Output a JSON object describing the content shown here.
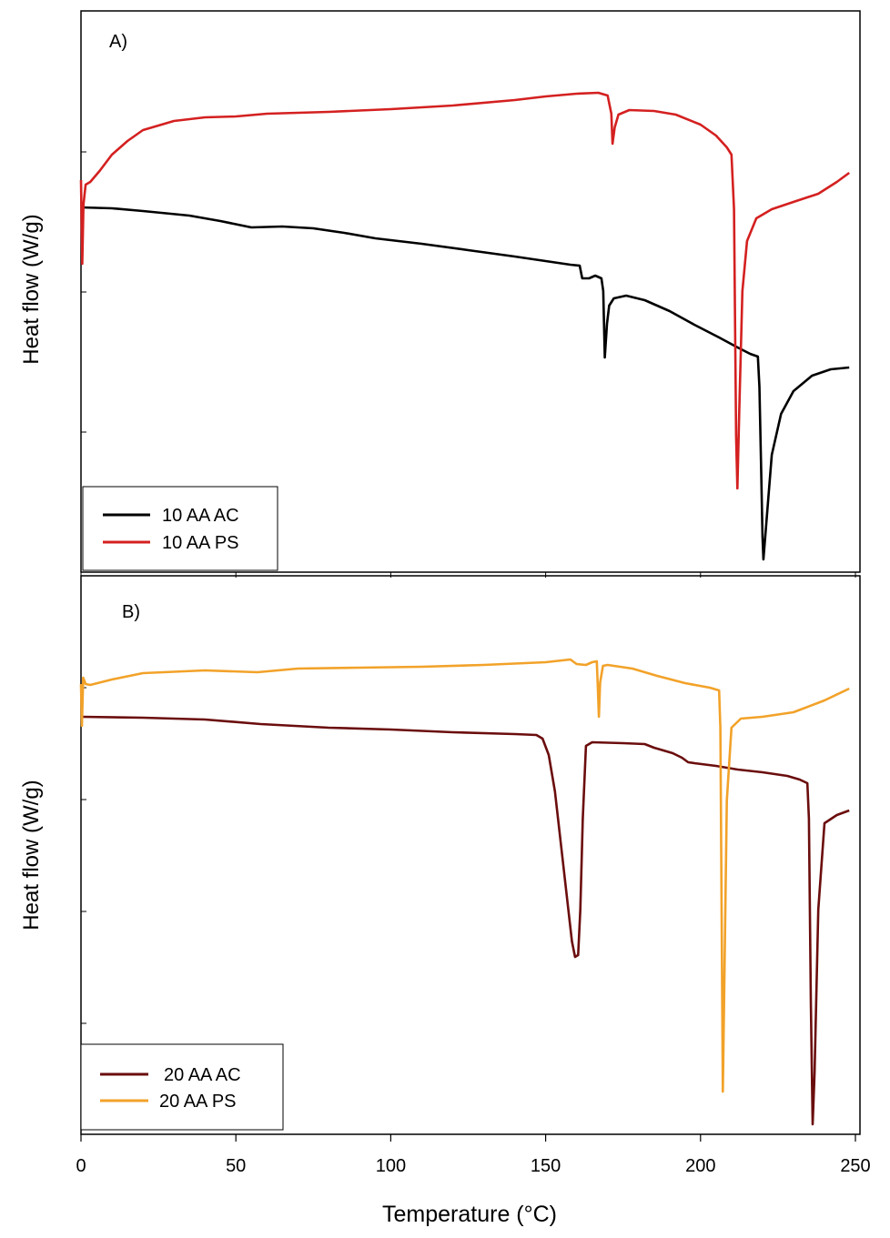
{
  "chart_data": [
    {
      "panel": "A)",
      "type": "line",
      "ylabel": "Heat flow (W/g)",
      "xlim": [
        0,
        250
      ],
      "legend": "bottom-left",
      "series": [
        {
          "name": "10 AA AC",
          "color": "#000000",
          "points": [
            [
              0,
              228
            ],
            [
              10,
              229
            ],
            [
              20,
              232
            ],
            [
              35,
              237
            ],
            [
              45,
              243
            ],
            [
              55,
              250
            ],
            [
              65,
              249
            ],
            [
              75,
              251
            ],
            [
              85,
              256
            ],
            [
              95,
              262
            ],
            [
              110,
              268
            ],
            [
              125,
              275
            ],
            [
              140,
              282
            ],
            [
              150,
              287
            ],
            [
              158,
              291
            ],
            [
              161,
              292
            ],
            [
              161.8,
              306
            ],
            [
              164,
              306
            ],
            [
              166,
              303
            ],
            [
              168,
              306
            ],
            [
              168.6,
              320
            ],
            [
              169.1,
              393
            ],
            [
              169.8,
              356
            ],
            [
              170.5,
              336
            ],
            [
              172,
              328
            ],
            [
              176,
              325
            ],
            [
              182,
              330
            ],
            [
              190,
              342
            ],
            [
              198,
              357
            ],
            [
              206,
              371
            ],
            [
              212,
              382
            ],
            [
              216,
              389
            ],
            [
              218.5,
              392
            ],
            [
              219,
              425
            ],
            [
              219.6,
              520
            ],
            [
              220,
              590
            ],
            [
              220.3,
              615
            ],
            [
              221,
              585
            ],
            [
              223,
              500
            ],
            [
              226,
              455
            ],
            [
              230,
              430
            ],
            [
              236,
              413
            ],
            [
              242,
              406
            ],
            [
              248,
              404
            ]
          ]
        },
        {
          "name": "10 AA PS",
          "color": "#d42020",
          "points": [
            [
              0,
              198
            ],
            [
              0.4,
              290
            ],
            [
              0.8,
              225
            ],
            [
              1.5,
              203
            ],
            [
              3,
              200
            ],
            [
              6,
              188
            ],
            [
              10,
              170
            ],
            [
              15,
              155
            ],
            [
              20,
              143
            ],
            [
              30,
              133
            ],
            [
              40,
              129
            ],
            [
              50,
              128
            ],
            [
              60,
              125
            ],
            [
              80,
              123
            ],
            [
              100,
              120
            ],
            [
              120,
              116
            ],
            [
              140,
              110
            ],
            [
              150,
              106
            ],
            [
              160,
              103
            ],
            [
              167,
              102
            ],
            [
              170,
              105
            ],
            [
              171.2,
              125
            ],
            [
              171.6,
              158
            ],
            [
              172.3,
              140
            ],
            [
              173.5,
              126
            ],
            [
              177,
              121
            ],
            [
              185,
              122
            ],
            [
              192,
              126
            ],
            [
              200,
              137
            ],
            [
              205,
              149
            ],
            [
              208.5,
              162
            ],
            [
              210,
              170
            ],
            [
              210.8,
              230
            ],
            [
              211.5,
              480
            ],
            [
              211.9,
              537
            ],
            [
              212.5,
              450
            ],
            [
              213.5,
              320
            ],
            [
              215,
              265
            ],
            [
              218,
              240
            ],
            [
              223,
              230
            ],
            [
              230,
              222
            ],
            [
              238,
              213
            ],
            [
              244,
              200
            ],
            [
              248,
              190
            ]
          ]
        }
      ]
    },
    {
      "panel": "B)",
      "type": "line",
      "ylabel": "Heat flow (W/g)",
      "xlabel": "Temperature (°C)",
      "xlim": [
        0,
        250
      ],
      "xticks": [
        0,
        50,
        100,
        150,
        200,
        250
      ],
      "legend": "bottom-left",
      "series": [
        {
          "name": "20 AA AC",
          "color": "#6b0d0d",
          "points": [
            [
              0,
              788
            ],
            [
              20,
              789
            ],
            [
              40,
              791
            ],
            [
              58,
              796
            ],
            [
              80,
              800
            ],
            [
              100,
              802
            ],
            [
              120,
              805
            ],
            [
              140,
              807
            ],
            [
              147,
              808
            ],
            [
              149,
              812
            ],
            [
              151,
              830
            ],
            [
              153,
              870
            ],
            [
              155,
              930
            ],
            [
              157,
              990
            ],
            [
              158.5,
              1035
            ],
            [
              159.5,
              1052
            ],
            [
              160.5,
              1050
            ],
            [
              161.2,
              1000
            ],
            [
              162,
              900
            ],
            [
              163,
              820
            ],
            [
              165,
              816
            ],
            [
              175,
              817
            ],
            [
              182,
              818
            ],
            [
              185,
              822
            ],
            [
              188,
              825
            ],
            [
              191,
              828
            ],
            [
              194,
              833
            ],
            [
              196,
              838
            ],
            [
              198,
              839
            ],
            [
              205,
              842
            ],
            [
              212,
              846
            ],
            [
              220,
              849
            ],
            [
              228,
              853
            ],
            [
              232,
              857
            ],
            [
              234.5,
              861
            ],
            [
              235,
              900
            ],
            [
              235.6,
              1100
            ],
            [
              236.2,
              1236
            ],
            [
              236.8,
              1180
            ],
            [
              238,
              1000
            ],
            [
              240,
              905
            ],
            [
              244,
              896
            ],
            [
              248,
              891
            ]
          ]
        },
        {
          "name": "20 AA PS",
          "color": "#f2a229",
          "points": [
            [
              0,
              752
            ],
            [
              0.3,
              798
            ],
            [
              0.7,
              745
            ],
            [
              1.5,
              752
            ],
            [
              3,
              753
            ],
            [
              10,
              747
            ],
            [
              20,
              740
            ],
            [
              40,
              737
            ],
            [
              57,
              739
            ],
            [
              70,
              735
            ],
            [
              90,
              734
            ],
            [
              110,
              733
            ],
            [
              130,
              731
            ],
            [
              150,
              728
            ],
            [
              158,
              725
            ],
            [
              160,
              730
            ],
            [
              163,
              731
            ],
            [
              165,
              728
            ],
            [
              166.5,
              727
            ],
            [
              166.9,
              760
            ],
            [
              167.2,
              788
            ],
            [
              167.6,
              750
            ],
            [
              168.5,
              732
            ],
            [
              170,
              731
            ],
            [
              178,
              735
            ],
            [
              186,
              743
            ],
            [
              195,
              751
            ],
            [
              203,
              756
            ],
            [
              206,
              759
            ],
            [
              206.4,
              800
            ],
            [
              206.9,
              1050
            ],
            [
              207.2,
              1200
            ],
            [
              207.6,
              1100
            ],
            [
              208.5,
              880
            ],
            [
              210,
              800
            ],
            [
              213,
              790
            ],
            [
              220,
              788
            ],
            [
              230,
              783
            ],
            [
              240,
              770
            ],
            [
              248,
              757
            ]
          ]
        }
      ]
    }
  ]
}
